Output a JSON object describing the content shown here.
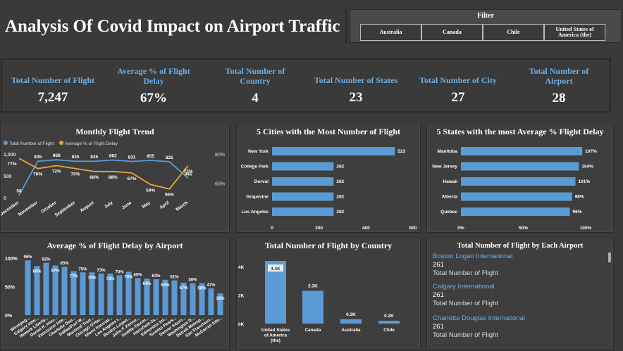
{
  "header": {
    "title": "Analysis Of Covid Impact on Airport Traffic"
  },
  "filter": {
    "title": "Filter",
    "items": [
      "Australia",
      "Canada",
      "Chile",
      "United States of America (the)"
    ]
  },
  "kpis": [
    {
      "label": "Total Number of Flight",
      "value": "7,247"
    },
    {
      "label": "Average % of Flight Delay",
      "value": "67%"
    },
    {
      "label": "Total Number of Country",
      "value": "4"
    },
    {
      "label": "Total Number of States",
      "value": "23"
    },
    {
      "label": "Total Number of City",
      "value": "27"
    },
    {
      "label": "Total Number of Airport",
      "value": "28"
    }
  ],
  "colors": {
    "blue": "#5b9bd5",
    "orange": "#e8a33d",
    "kpi_label": "#6aaee8",
    "background": "#3a3a3a"
  },
  "chart_data": [
    {
      "id": "monthly",
      "type": "line",
      "title": "Monthly Flight Trend",
      "legend": [
        "Total Number of Flight",
        "Average % of Flight Delay"
      ],
      "legend_position": "top-left",
      "categories": [
        "December",
        "November",
        "October",
        "September",
        "August",
        "July",
        "June",
        "May",
        "April",
        "March"
      ],
      "series": [
        {
          "name": "Total Number of Flight",
          "values": [
            56,
            835,
            868,
            835,
            835,
            862,
            831,
            855,
            825,
            445
          ]
        },
        {
          "name": "Average % of Flight Delay",
          "values": [
            77,
            70,
            72,
            70,
            68,
            68,
            67,
            59,
            56,
            72
          ],
          "labels": [
            "77%",
            "70%",
            "72%",
            "70%",
            "68%",
            "68%",
            "67%",
            "59%",
            "56%",
            "72%"
          ]
        }
      ],
      "y_ticks": [
        "0",
        "500",
        "1,000"
      ],
      "y2_ticks": [
        "60%",
        "80%"
      ]
    },
    {
      "id": "cities",
      "type": "bar",
      "title": "5 Cities with the Most Number of Flight",
      "categories": [
        "New York",
        "College Park",
        "Dorval",
        "Grapevine",
        "Los Angeles"
      ],
      "values": [
        523,
        262,
        262,
        262,
        262
      ],
      "x_ticks": [
        "0",
        "200",
        "400",
        "600"
      ],
      "xlim": [
        0,
        600
      ]
    },
    {
      "id": "states",
      "type": "bar",
      "title": "5 States with the most Average % Flight Delay",
      "categories": [
        "Manitoba",
        "New Jersey",
        "Hawaii",
        "Alberta",
        "Quebec"
      ],
      "values": [
        107,
        104,
        101,
        98,
        96
      ],
      "labels": [
        "107%",
        "104%",
        "101%",
        "98%",
        "96%"
      ],
      "x_ticks": [
        "0%",
        "50%",
        "100%"
      ],
      "xlim": [
        0,
        110
      ]
    },
    {
      "id": "airport_delay",
      "type": "bar",
      "title": "Average % of Flight Delay by Airport",
      "categories": [
        "Winnipeg...",
        "Calgary Inter...",
        "Newark Liberty...",
        "Daniel K. Inou...",
        "Vancouver Inte...",
        "Charlotte Dou...",
        "Dallas/Fort W...",
        "Montreal Trud...",
        "Chicago O'Har...",
        "Miami Internat...",
        "Los Angeles I...",
        "Boston Logan...",
        "John F. Kenne...",
        "Seattle-Tacom...",
        "Hartsfield-Ja...",
        "Edmonton Int...",
        "Toronto Pears...",
        "Denver Intern...",
        "Washington D...",
        "Detroit Metrop...",
        "San Francisco...",
        "McCarran Inte..."
      ],
      "values": [
        96,
        86,
        92,
        87,
        85,
        77,
        75,
        75,
        73,
        73,
        70,
        76,
        65,
        64,
        63,
        62,
        61,
        57,
        56,
        56,
        47,
        38
      ],
      "labels": [
        "96%",
        "86%",
        "92%",
        "87%",
        "85%",
        "77%",
        "75%",
        "75%",
        "73%",
        "73%",
        "70%",
        "76%",
        "65%",
        "64%",
        "63%",
        "62%",
        "61%",
        "57%",
        "56%",
        "56%",
        "47%",
        "38%"
      ],
      "y_ticks": [
        "0%",
        "50%",
        "100%"
      ],
      "ylim": [
        0,
        100
      ]
    },
    {
      "id": "by_country",
      "type": "bar",
      "title": "Total Number of Flight by Country",
      "categories": [
        "United States of America (the)",
        "Canada",
        "Australia",
        "Chile"
      ],
      "values": [
        4400,
        2300,
        300,
        200
      ],
      "labels": [
        "4.4K",
        "2.3K",
        "0.3K",
        "0.2K"
      ],
      "y_ticks": [
        "0K",
        "2K",
        "4K"
      ],
      "ylim": [
        0,
        4500
      ]
    }
  ],
  "airport_list": {
    "title": "Total Number of Flight by Each Airport",
    "items": [
      {
        "name": "Boston Logan International",
        "value": "261",
        "label": "Total Number of Flight"
      },
      {
        "name": "Calgary International",
        "value": "261",
        "label": "Total Number of Flight"
      },
      {
        "name": "Charlotte Douglas International",
        "value": "261",
        "label": "Total Number of Flight"
      }
    ]
  }
}
